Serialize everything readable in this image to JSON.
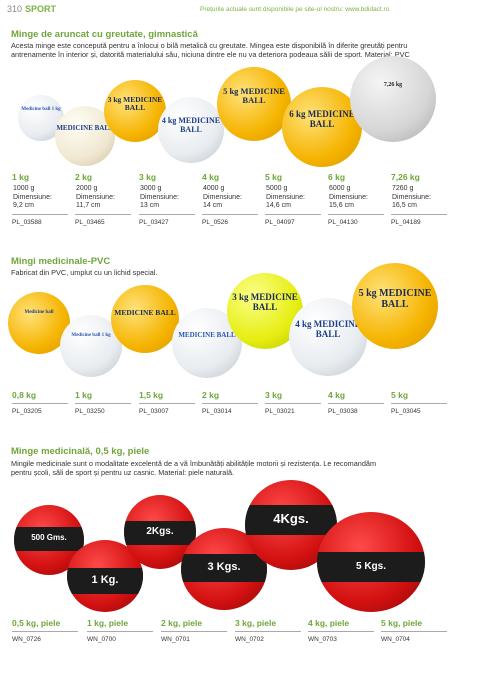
{
  "header": {
    "page_number": "310",
    "section": "SPORT",
    "note": "Prețurile actuale sunt disponibile pe site-ul nostru: www.bdidact.ro"
  },
  "section1": {
    "title": "Minge de aruncat cu greutate, gimnastică",
    "description": "Acesta minge este concepută pentru a înlocui o bilă metalică cu greutate. Mingea este disponibilă în diferite greutăți pentru antrenamente în interior și, datorită materialului său, niciuna dintre ele nu va deteriora podeaua sălii de sport. Material: PVC",
    "balls": [
      {
        "text": "Medicine ball 1 kg",
        "color": "white"
      },
      {
        "text": "MEDICINE BALL",
        "color": "cream"
      },
      {
        "text": "3 kg MEDICINE BALL",
        "color": "#f5b400"
      },
      {
        "text": "4 kg MEDICINE BALL",
        "color": "white"
      },
      {
        "text": "5 kg MEDICINE BALL",
        "color": "#f5b400"
      },
      {
        "text": "6 kg MEDICINE BALL",
        "color": "#f5b400"
      },
      {
        "text": "7,26 kg",
        "color": "grey"
      }
    ],
    "products": [
      {
        "weight": "1 kg",
        "grams": "1000 g",
        "dim_label": "Dimensiune:",
        "dim": "9,2 cm",
        "code": "PL_03588"
      },
      {
        "weight": "2 kg",
        "grams": "2000 g",
        "dim_label": "Dimensiune:",
        "dim": "11,7 cm",
        "code": "PL_03465"
      },
      {
        "weight": "3 kg",
        "grams": "3000 g",
        "dim_label": "Dimensiune:",
        "dim": "13 cm",
        "code": "PL_03427"
      },
      {
        "weight": "4 kg",
        "grams": "4000 g",
        "dim_label": "Dimensiune:",
        "dim": "14 cm",
        "code": "PL_0526"
      },
      {
        "weight": "5 kg",
        "grams": "5000 g",
        "dim_label": "Dimensiune:",
        "dim": "14,6 cm",
        "code": "PL_04097"
      },
      {
        "weight": "6 kg",
        "grams": "6000 g",
        "dim_label": "Dimensiune:",
        "dim": "15,6 cm",
        "code": "PL_04130"
      },
      {
        "weight": "7,26 kg",
        "grams": "7260 g",
        "dim_label": "Dimensiune:",
        "dim": "16,5 cm",
        "code": "PL_04189"
      }
    ]
  },
  "section2": {
    "title": "Mingi medicinale-PVC",
    "description": "Fabricat din PVC, umplut cu un lichid special.",
    "balls": [
      {
        "text": "Medicine ball",
        "color": "#f5b400"
      },
      {
        "text": "Medicine ball 1 kg",
        "color": "white"
      },
      {
        "text": "MEDICINE BALL",
        "color": "#f5b400"
      },
      {
        "text": "MEDICINE BALL",
        "color": "white"
      },
      {
        "text": "3 kg MEDICINE BALL",
        "color": "#e6ee12"
      },
      {
        "text": "4 kg MEDICINE BALL",
        "color": "white"
      },
      {
        "text": "5 kg MEDICINE BALL",
        "color": "#f5b400"
      }
    ],
    "products": [
      {
        "weight": "0,8 kg",
        "code": "PL_03205"
      },
      {
        "weight": "1 kg",
        "code": "PL_03250"
      },
      {
        "weight": "1,5 kg",
        "code": "PL_03007"
      },
      {
        "weight": "2 kg",
        "code": "PL_03014"
      },
      {
        "weight": "3 kg",
        "code": "PL_03021"
      },
      {
        "weight": "4 kg",
        "code": "PL_03038"
      },
      {
        "weight": "5 kg",
        "code": "PL_03045"
      }
    ]
  },
  "section3": {
    "title": "Minge medicinală, 0,5 kg, piele",
    "description": "Mingile medicinale sunt o modalitate excelentă de a vă îmbunătăți abilitățile motorii și rezistența. Le recomandăm pentru școli, săli de sport și pentru uz casnic. Material: piele naturală.",
    "balls": [
      {
        "text": "500 Gms."
      },
      {
        "text": "1 Kg."
      },
      {
        "text": "2Kgs."
      },
      {
        "text": "3 Kgs."
      },
      {
        "text": "4Kgs."
      },
      {
        "text": "5 Kgs."
      }
    ],
    "products": [
      {
        "weight": "0,5 kg, piele",
        "code": "WN_0726"
      },
      {
        "weight": "1 kg, piele",
        "code": "WN_0700"
      },
      {
        "weight": "2 kg, piele",
        "code": "WN_0701"
      },
      {
        "weight": "3 kg, piele",
        "code": "WN_0702"
      },
      {
        "weight": "4 kg, piele",
        "code": "WN_0703"
      },
      {
        "weight": "5 kg, piele",
        "code": "WN_0704"
      }
    ]
  }
}
